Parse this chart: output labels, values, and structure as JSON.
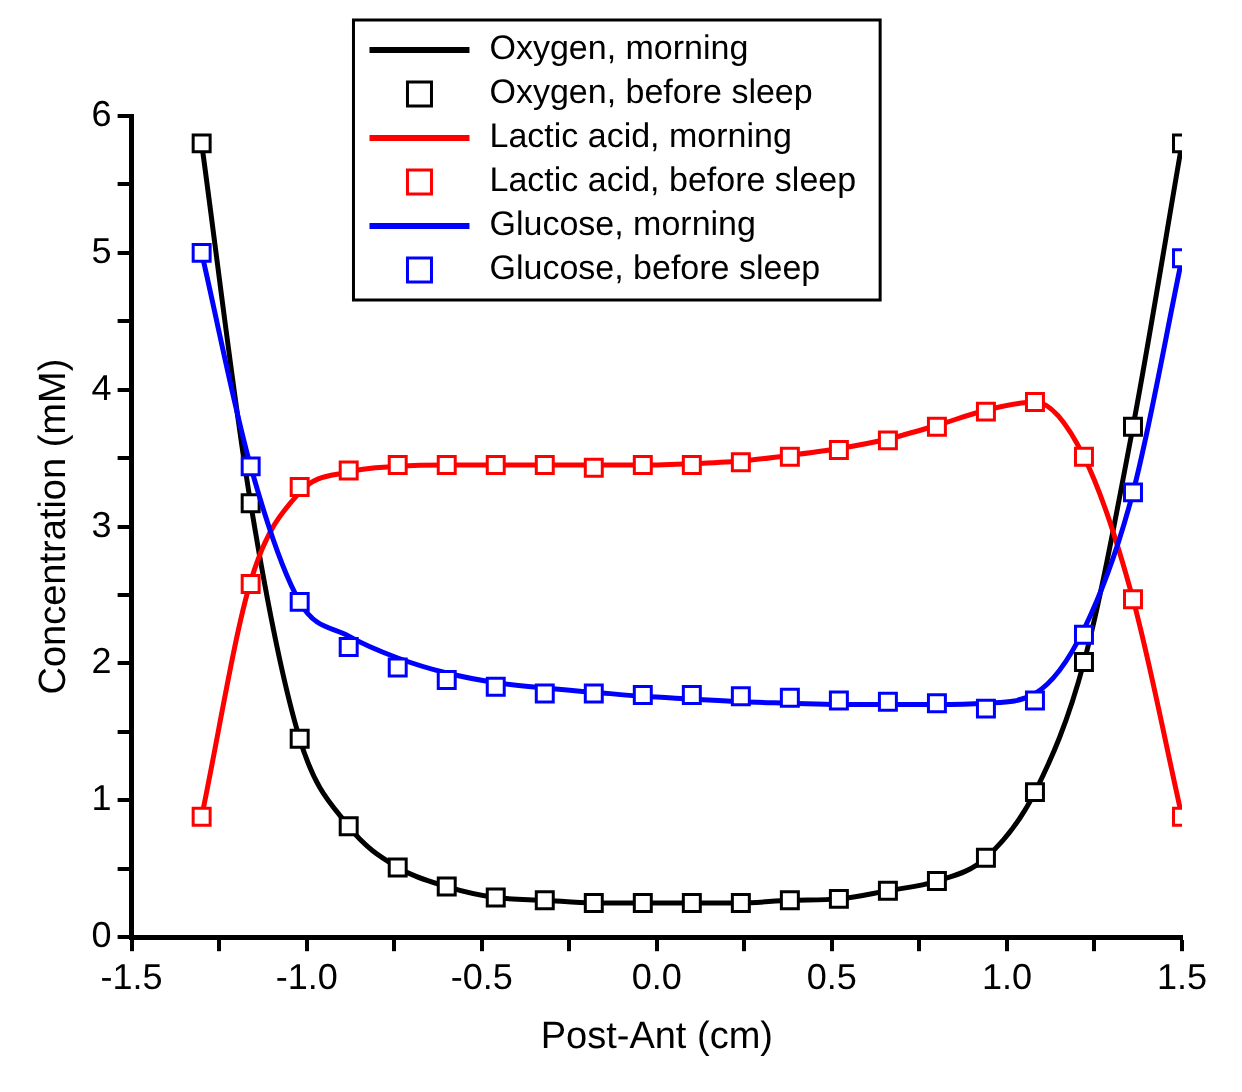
{
  "chart_data": {
    "type": "line",
    "xlabel": "Post-Ant (cm)",
    "ylabel": "Concentration (mM)",
    "x": [
      -1.3,
      -1.16,
      -1.02,
      -0.88,
      -0.74,
      -0.6,
      -0.46,
      -0.32,
      -0.18,
      -0.04,
      0.1,
      0.24,
      0.38,
      0.52,
      0.66,
      0.8,
      0.94,
      1.08,
      1.22,
      1.36,
      1.5
    ],
    "series": [
      {
        "name": "Oxygen, morning",
        "type": "line",
        "color": "#000000",
        "marker": "none",
        "values": [
          5.8,
          3.17,
          1.45,
          0.81,
          0.51,
          0.37,
          0.29,
          0.27,
          0.25,
          0.25,
          0.25,
          0.25,
          0.27,
          0.28,
          0.34,
          0.41,
          0.58,
          1.06,
          2.01,
          3.73,
          5.8
        ]
      },
      {
        "name": "Oxygen, before sleep",
        "type": "scatter",
        "color": "#000000",
        "marker": "square",
        "values": [
          5.8,
          3.17,
          1.45,
          0.81,
          0.51,
          0.37,
          0.29,
          0.27,
          0.25,
          0.25,
          0.25,
          0.25,
          0.27,
          0.28,
          0.34,
          0.41,
          0.58,
          1.06,
          2.01,
          3.73,
          5.8
        ]
      },
      {
        "name": "Lactic acid, morning",
        "type": "line",
        "color": "#ff0000",
        "marker": "none",
        "values": [
          0.88,
          2.6,
          3.25,
          3.4,
          3.44,
          3.45,
          3.45,
          3.45,
          3.45,
          3.45,
          3.46,
          3.48,
          3.52,
          3.57,
          3.64,
          3.74,
          3.85,
          3.91,
          3.51,
          2.47,
          0.88
        ]
      },
      {
        "name": "Lactic acid, before sleep",
        "type": "scatter",
        "color": "#ff0000",
        "marker": "square",
        "values": [
          0.88,
          2.58,
          3.29,
          3.41,
          3.45,
          3.45,
          3.45,
          3.45,
          3.43,
          3.45,
          3.45,
          3.47,
          3.51,
          3.56,
          3.63,
          3.73,
          3.84,
          3.91,
          3.51,
          2.47,
          0.88
        ]
      },
      {
        "name": "Glucose, morning",
        "type": "line",
        "color": "#0000ff",
        "marker": "none",
        "values": [
          5.0,
          3.44,
          2.45,
          2.2,
          2.04,
          1.93,
          1.86,
          1.82,
          1.79,
          1.76,
          1.74,
          1.72,
          1.71,
          1.7,
          1.7,
          1.7,
          1.71,
          1.78,
          2.25,
          3.25,
          4.96
        ]
      },
      {
        "name": "Glucose, before sleep",
        "type": "scatter",
        "color": "#0000ff",
        "marker": "square",
        "values": [
          5.0,
          3.44,
          2.45,
          2.12,
          1.97,
          1.88,
          1.83,
          1.78,
          1.78,
          1.77,
          1.77,
          1.76,
          1.75,
          1.73,
          1.72,
          1.71,
          1.67,
          1.73,
          2.21,
          3.25,
          4.96
        ]
      }
    ],
    "xlim": [
      -1.5,
      1.5
    ],
    "xticks": [
      {
        "value": -1.5,
        "label": "-1.5"
      },
      {
        "value": -1.25,
        "label": null
      },
      {
        "value": -1.0,
        "label": "-1.0"
      },
      {
        "value": -0.75,
        "label": null
      },
      {
        "value": -0.5,
        "label": "-0.5"
      },
      {
        "value": -0.25,
        "label": null
      },
      {
        "value": 0,
        "label": "0.0"
      },
      {
        "value": 0.25,
        "label": null
      },
      {
        "value": 0.5,
        "label": "0.5"
      },
      {
        "value": 0.75,
        "label": null
      },
      {
        "value": 1.0,
        "label": "1.0"
      },
      {
        "value": 1.25,
        "label": null
      },
      {
        "value": 1.5,
        "label": "1.5"
      }
    ],
    "ylim": [
      0,
      6
    ],
    "yticks": [
      0,
      {
        "value": 0.5,
        "label": null
      },
      1,
      {
        "value": 1.5,
        "label": null
      },
      2,
      {
        "value": 2.5,
        "label": null
      },
      3,
      {
        "value": 3.5,
        "label": null
      },
      4,
      {
        "value": 4.5,
        "label": null
      },
      5,
      {
        "value": 5.5,
        "label": null
      },
      6
    ],
    "grid": false,
    "legend": "top"
  }
}
